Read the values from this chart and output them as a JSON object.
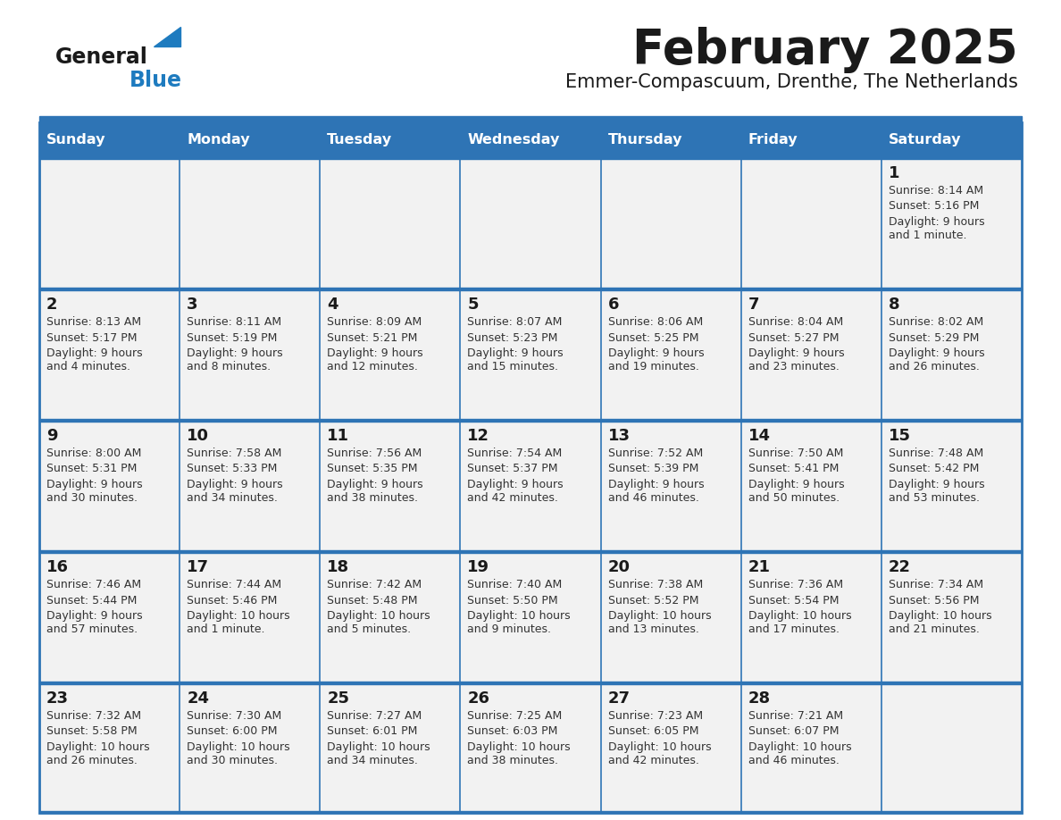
{
  "title": "February 2025",
  "subtitle": "Emmer-Compascuum, Drenthe, The Netherlands",
  "days_of_week": [
    "Sunday",
    "Monday",
    "Tuesday",
    "Wednesday",
    "Thursday",
    "Friday",
    "Saturday"
  ],
  "header_bg": "#2E74B5",
  "header_text": "#FFFFFF",
  "cell_bg": "#F2F2F2",
  "line_color": "#2E74B5",
  "title_color": "#1A1A1A",
  "text_color": "#1A1A1A",
  "info_text_color": "#333333",
  "logo_general_color": "#1A1A1A",
  "logo_blue_color": "#1E7BBF",
  "weeks": [
    [
      null,
      null,
      null,
      null,
      null,
      null,
      1
    ],
    [
      2,
      3,
      4,
      5,
      6,
      7,
      8
    ],
    [
      9,
      10,
      11,
      12,
      13,
      14,
      15
    ],
    [
      16,
      17,
      18,
      19,
      20,
      21,
      22
    ],
    [
      23,
      24,
      25,
      26,
      27,
      28,
      null
    ]
  ],
  "day_info": {
    "1": {
      "sunrise": "8:14 AM",
      "sunset": "5:16 PM",
      "daylight": "9 hours\nand 1 minute."
    },
    "2": {
      "sunrise": "8:13 AM",
      "sunset": "5:17 PM",
      "daylight": "9 hours\nand 4 minutes."
    },
    "3": {
      "sunrise": "8:11 AM",
      "sunset": "5:19 PM",
      "daylight": "9 hours\nand 8 minutes."
    },
    "4": {
      "sunrise": "8:09 AM",
      "sunset": "5:21 PM",
      "daylight": "9 hours\nand 12 minutes."
    },
    "5": {
      "sunrise": "8:07 AM",
      "sunset": "5:23 PM",
      "daylight": "9 hours\nand 15 minutes."
    },
    "6": {
      "sunrise": "8:06 AM",
      "sunset": "5:25 PM",
      "daylight": "9 hours\nand 19 minutes."
    },
    "7": {
      "sunrise": "8:04 AM",
      "sunset": "5:27 PM",
      "daylight": "9 hours\nand 23 minutes."
    },
    "8": {
      "sunrise": "8:02 AM",
      "sunset": "5:29 PM",
      "daylight": "9 hours\nand 26 minutes."
    },
    "9": {
      "sunrise": "8:00 AM",
      "sunset": "5:31 PM",
      "daylight": "9 hours\nand 30 minutes."
    },
    "10": {
      "sunrise": "7:58 AM",
      "sunset": "5:33 PM",
      "daylight": "9 hours\nand 34 minutes."
    },
    "11": {
      "sunrise": "7:56 AM",
      "sunset": "5:35 PM",
      "daylight": "9 hours\nand 38 minutes."
    },
    "12": {
      "sunrise": "7:54 AM",
      "sunset": "5:37 PM",
      "daylight": "9 hours\nand 42 minutes."
    },
    "13": {
      "sunrise": "7:52 AM",
      "sunset": "5:39 PM",
      "daylight": "9 hours\nand 46 minutes."
    },
    "14": {
      "sunrise": "7:50 AM",
      "sunset": "5:41 PM",
      "daylight": "9 hours\nand 50 minutes."
    },
    "15": {
      "sunrise": "7:48 AM",
      "sunset": "5:42 PM",
      "daylight": "9 hours\nand 53 minutes."
    },
    "16": {
      "sunrise": "7:46 AM",
      "sunset": "5:44 PM",
      "daylight": "9 hours\nand 57 minutes."
    },
    "17": {
      "sunrise": "7:44 AM",
      "sunset": "5:46 PM",
      "daylight": "10 hours\nand 1 minute."
    },
    "18": {
      "sunrise": "7:42 AM",
      "sunset": "5:48 PM",
      "daylight": "10 hours\nand 5 minutes."
    },
    "19": {
      "sunrise": "7:40 AM",
      "sunset": "5:50 PM",
      "daylight": "10 hours\nand 9 minutes."
    },
    "20": {
      "sunrise": "7:38 AM",
      "sunset": "5:52 PM",
      "daylight": "10 hours\nand 13 minutes."
    },
    "21": {
      "sunrise": "7:36 AM",
      "sunset": "5:54 PM",
      "daylight": "10 hours\nand 17 minutes."
    },
    "22": {
      "sunrise": "7:34 AM",
      "sunset": "5:56 PM",
      "daylight": "10 hours\nand 21 minutes."
    },
    "23": {
      "sunrise": "7:32 AM",
      "sunset": "5:58 PM",
      "daylight": "10 hours\nand 26 minutes."
    },
    "24": {
      "sunrise": "7:30 AM",
      "sunset": "6:00 PM",
      "daylight": "10 hours\nand 30 minutes."
    },
    "25": {
      "sunrise": "7:27 AM",
      "sunset": "6:01 PM",
      "daylight": "10 hours\nand 34 minutes."
    },
    "26": {
      "sunrise": "7:25 AM",
      "sunset": "6:03 PM",
      "daylight": "10 hours\nand 38 minutes."
    },
    "27": {
      "sunrise": "7:23 AM",
      "sunset": "6:05 PM",
      "daylight": "10 hours\nand 42 minutes."
    },
    "28": {
      "sunrise": "7:21 AM",
      "sunset": "6:07 PM",
      "daylight": "10 hours\nand 46 minutes."
    }
  }
}
